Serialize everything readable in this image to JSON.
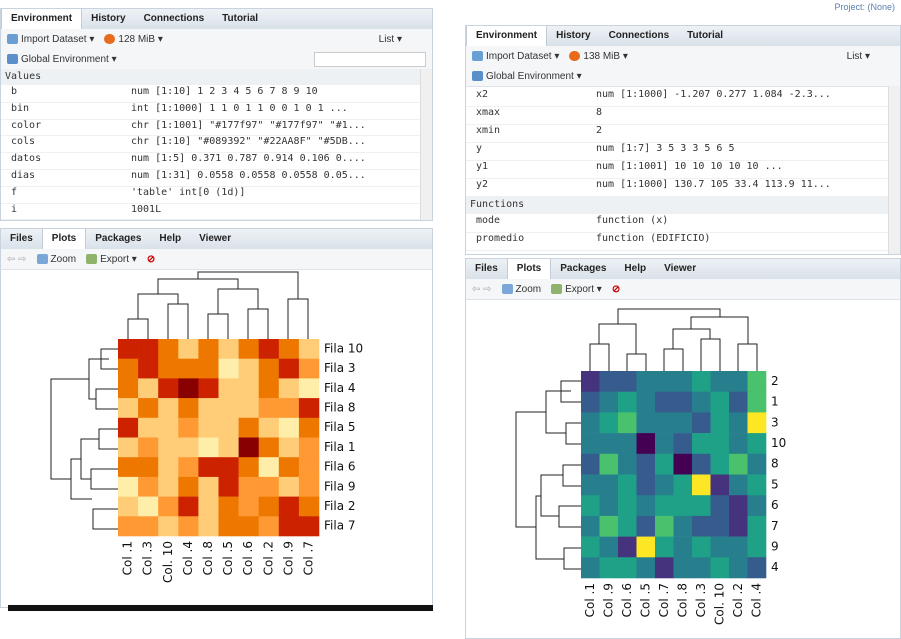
{
  "left": {
    "env_tabs": [
      "Environment",
      "History",
      "Connections",
      "Tutorial"
    ],
    "import": "Import Dataset ▾",
    "memory": "128 MiB ▾",
    "list": "List ▾",
    "global_env": "Global Environment ▾",
    "section": "Values",
    "rows": [
      [
        "b",
        "num [1:10] 1 2 3 4 5 6 7 8 9 10"
      ],
      [
        "bin",
        "int [1:1000] 1 1 0 1 1 0 0 1 0 1 ..."
      ],
      [
        "color",
        "chr [1:1001] \"#177f97\" \"#177f97\" \"#1..."
      ],
      [
        "cols",
        "chr [1:10] \"#089392\" \"#22AA8F\" \"#5DB..."
      ],
      [
        "datos",
        "num [1:5] 0.371 0.787 0.914 0.106 0...."
      ],
      [
        "dias",
        "num [1:31] 0.0558 0.0558 0.0558 0.05..."
      ],
      [
        "f",
        "'table' int[0 (1d)]"
      ],
      [
        "i",
        "1001L"
      ]
    ],
    "plot_tabs": [
      "Files",
      "Plots",
      "Packages",
      "Help",
      "Viewer"
    ],
    "zoom": "Zoom",
    "export": "Export ▾",
    "heatmap": {
      "row_labels": [
        "Fila 10",
        "Fila 3",
        "Fila 4",
        "Fila 8",
        "Fila 5",
        "Fila 1",
        "Fila 6",
        "Fila 9",
        "Fila 2",
        "Fila 7"
      ],
      "col_labels": [
        "Col .1",
        "Col .3",
        "Col. 10",
        "Col .4",
        "Col .8",
        "Col .5",
        "Col .6",
        "Col .2",
        "Col .9",
        "Col .7"
      ],
      "cell_colors": [
        [
          "#c20",
          "#c20",
          "#e70",
          "#fc7",
          "#e70",
          "#fc7",
          "#e70",
          "#c20",
          "#e70",
          "#fc7"
        ],
        [
          "#e70",
          "#c20",
          "#e70",
          "#e70",
          "#e70",
          "#fea",
          "#fc7",
          "#e70",
          "#c20",
          "#f93"
        ],
        [
          "#e70",
          "#fc7",
          "#c20",
          "#800",
          "#c20",
          "#fc7",
          "#fc7",
          "#e70",
          "#fc7",
          "#fea"
        ],
        [
          "#fc7",
          "#e70",
          "#fc7",
          "#e70",
          "#fc7",
          "#fc7",
          "#fc7",
          "#f93",
          "#f93",
          "#c20"
        ],
        [
          "#c20",
          "#fc7",
          "#fc7",
          "#f93",
          "#fc7",
          "#fc7",
          "#e70",
          "#fc7",
          "#fea",
          "#e70"
        ],
        [
          "#fc7",
          "#f93",
          "#fc7",
          "#fc7",
          "#fea",
          "#fc7",
          "#800",
          "#e70",
          "#fc7",
          "#f93"
        ],
        [
          "#e70",
          "#e70",
          "#fc7",
          "#f93",
          "#c20",
          "#c20",
          "#e70",
          "#fea",
          "#e70",
          "#f93"
        ],
        [
          "#fea",
          "#f93",
          "#fc7",
          "#e70",
          "#fc7",
          "#c20",
          "#f93",
          "#f93",
          "#fc7",
          "#f93"
        ],
        [
          "#fc7",
          "#fea",
          "#f93",
          "#c20",
          "#fc7",
          "#e70",
          "#f93",
          "#e70",
          "#c20",
          "#e70"
        ],
        [
          "#f93",
          "#f93",
          "#fc7",
          "#f93",
          "#fc7",
          "#e70",
          "#e70",
          "#f93",
          "#c20",
          "#c20"
        ]
      ]
    }
  },
  "right": {
    "project": "Project: (None)",
    "env_tabs": [
      "Environment",
      "History",
      "Connections",
      "Tutorial"
    ],
    "import": "Import Dataset ▾",
    "memory": "138 MiB ▾",
    "list": "List ▾",
    "global_env": "Global Environment ▾",
    "rows": [
      [
        "x2",
        "num [1:1000] -1.207 0.277 1.084 -2.3..."
      ],
      [
        "xmax",
        "8"
      ],
      [
        "xmin",
        "2"
      ],
      [
        "y",
        "num [1:7] 3 5 3 3 5 6 5"
      ],
      [
        "y1",
        "num [1:1001] 10 10 10 10 10 ..."
      ],
      [
        "y2",
        "num [1:1000] 130.7 105 33.4 113.9 11..."
      ]
    ],
    "section": "Functions",
    "functions": [
      [
        "mode",
        "function (x)"
      ],
      [
        "promedio",
        "function (EDIFICIO)"
      ]
    ],
    "plot_tabs": [
      "Files",
      "Plots",
      "Packages",
      "Help",
      "Viewer"
    ],
    "zoom": "Zoom",
    "export": "Export ▾",
    "heatmap": {
      "row_labels": [
        "2",
        "1",
        "3",
        "10",
        "8",
        "5",
        "6",
        "7",
        "9",
        "4"
      ],
      "col_labels": [
        "Col .1",
        "Col .9",
        "Col .6",
        "Col .5",
        "Col .7",
        "Col .8",
        "Col .3",
        "Col. 10",
        "Col .2",
        "Col .4"
      ],
      "cell_colors": [
        [
          "#46337e",
          "#365c8d",
          "#365c8d",
          "#277f8e",
          "#277f8e",
          "#277f8e",
          "#1fa187",
          "#277f8e",
          "#277f8e",
          "#4ac16d"
        ],
        [
          "#365c8d",
          "#277f8e",
          "#1fa187",
          "#277f8e",
          "#365c8d",
          "#365c8d",
          "#277f8e",
          "#1fa187",
          "#365c8d",
          "#4ac16d"
        ],
        [
          "#277f8e",
          "#1fa187",
          "#4ac16d",
          "#277f8e",
          "#277f8e",
          "#277f8e",
          "#365c8d",
          "#1fa187",
          "#277f8e",
          "#fde725"
        ],
        [
          "#277f8e",
          "#277f8e",
          "#277f8e",
          "#440154",
          "#277f8e",
          "#365c8d",
          "#1fa187",
          "#1fa187",
          "#277f8e",
          "#1fa187"
        ],
        [
          "#365c8d",
          "#4ac16d",
          "#277f8e",
          "#365c8d",
          "#1fa187",
          "#440154",
          "#365c8d",
          "#1fa187",
          "#4ac16d",
          "#277f8e"
        ],
        [
          "#277f8e",
          "#277f8e",
          "#1fa187",
          "#365c8d",
          "#277f8e",
          "#1fa187",
          "#fde725",
          "#46337e",
          "#277f8e",
          "#1fa187"
        ],
        [
          "#1fa187",
          "#277f8e",
          "#1fa187",
          "#277f8e",
          "#1fa187",
          "#1fa187",
          "#1fa187",
          "#365c8d",
          "#46337e",
          "#277f8e"
        ],
        [
          "#277f8e",
          "#4ac16d",
          "#1fa187",
          "#365c8d",
          "#4ac16d",
          "#277f8e",
          "#365c8d",
          "#365c8d",
          "#46337e",
          "#1fa187"
        ],
        [
          "#1fa187",
          "#277f8e",
          "#46337e",
          "#fde725",
          "#1fa187",
          "#277f8e",
          "#1fa187",
          "#277f8e",
          "#277f8e",
          "#1fa187"
        ],
        [
          "#277f8e",
          "#1fa187",
          "#1fa187",
          "#277f8e",
          "#46337e",
          "#277f8e",
          "#277f8e",
          "#1fa187",
          "#277f8e",
          "#365c8d"
        ]
      ]
    }
  }
}
